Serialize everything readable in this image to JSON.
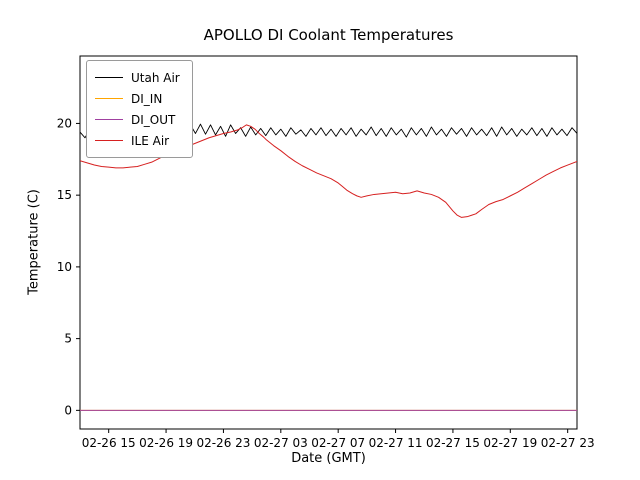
{
  "chart_data": {
    "type": "line",
    "title": "APOLLO DI Coolant Temperatures",
    "xlabel": "Date (GMT)",
    "ylabel": "Temperature (C)",
    "xlim": [
      0,
      34.65
    ],
    "ylim": [
      -1.3,
      24.7
    ],
    "grid": false,
    "legend_position": "upper left",
    "x_ticks": [
      {
        "t": 2,
        "label": "02-26 15"
      },
      {
        "t": 6,
        "label": "02-26 19"
      },
      {
        "t": 10,
        "label": "02-26 23"
      },
      {
        "t": 14,
        "label": "02-27 03"
      },
      {
        "t": 18,
        "label": "02-27 07"
      },
      {
        "t": 22,
        "label": "02-27 11"
      },
      {
        "t": 26,
        "label": "02-27 15"
      },
      {
        "t": 30,
        "label": "02-27 19"
      },
      {
        "t": 34,
        "label": "02-27 23"
      }
    ],
    "y_ticks": [
      0,
      5,
      10,
      15,
      20
    ],
    "series": [
      {
        "name": "Utah Air",
        "color": "#000000",
        "width": 0.9,
        "t0": 0,
        "dt": 0.35,
        "values": [
          19.4,
          19.0,
          19.6,
          19.1,
          19.7,
          19.2,
          19.6,
          19.05,
          19.65,
          19.2,
          19.7,
          19.1,
          19.75,
          19.25,
          19.6,
          19.1,
          19.7,
          19.2,
          19.8,
          19.15,
          19.85,
          19.2,
          19.9,
          19.3,
          19.95,
          19.25,
          19.9,
          19.2,
          19.8,
          19.1,
          19.9,
          19.3,
          19.7,
          19.1,
          19.75,
          19.2,
          19.65,
          19.15,
          19.7,
          19.2,
          19.6,
          19.1,
          19.7,
          19.25,
          19.55,
          19.1,
          19.65,
          19.2,
          19.7,
          19.15,
          19.6,
          19.1,
          19.65,
          19.2,
          19.7,
          19.1,
          19.6,
          19.2,
          19.75,
          19.15,
          19.65,
          19.1,
          19.7,
          19.2,
          19.6,
          19.05,
          19.7,
          19.2,
          19.65,
          19.1,
          19.75,
          19.2,
          19.6,
          19.1,
          19.7,
          19.25,
          19.65,
          19.1,
          19.7,
          19.2,
          19.6,
          19.15,
          19.7,
          19.1,
          19.75,
          19.2,
          19.65,
          19.1,
          19.6,
          19.2,
          19.7,
          19.15,
          19.65,
          19.1,
          19.7,
          19.2,
          19.6,
          19.15,
          19.7,
          19.3
        ]
      },
      {
        "name": "DI_IN",
        "color": "#ffa500",
        "width": 1,
        "points": [
          [
            0,
            0.0
          ],
          [
            34.65,
            0.0
          ]
        ]
      },
      {
        "name": "DI_OUT",
        "color": "#a040a0",
        "width": 1,
        "points": [
          [
            0,
            0.0
          ],
          [
            34.65,
            0.0
          ]
        ]
      },
      {
        "name": "ILE Air",
        "color": "#d62020",
        "width": 1,
        "points": [
          [
            0,
            17.4
          ],
          [
            0.5,
            17.25
          ],
          [
            1,
            17.1
          ],
          [
            1.5,
            17.0
          ],
          [
            2,
            16.95
          ],
          [
            2.5,
            16.9
          ],
          [
            3,
            16.9
          ],
          [
            3.5,
            16.95
          ],
          [
            4,
            17.0
          ],
          [
            4.5,
            17.15
          ],
          [
            5,
            17.3
          ],
          [
            5.5,
            17.55
          ],
          [
            6,
            17.8
          ],
          [
            6.5,
            18.0
          ],
          [
            7,
            18.2
          ],
          [
            7.5,
            18.4
          ],
          [
            8,
            18.6
          ],
          [
            8.5,
            18.8
          ],
          [
            9,
            19.0
          ],
          [
            9.5,
            19.15
          ],
          [
            10,
            19.3
          ],
          [
            10.5,
            19.4
          ],
          [
            11,
            19.55
          ],
          [
            11.3,
            19.7
          ],
          [
            11.6,
            19.9
          ],
          [
            11.9,
            19.8
          ],
          [
            12.2,
            19.6
          ],
          [
            12.5,
            19.3
          ],
          [
            12.8,
            19.05
          ],
          [
            13,
            18.85
          ],
          [
            13.5,
            18.45
          ],
          [
            14,
            18.1
          ],
          [
            14.5,
            17.7
          ],
          [
            15,
            17.35
          ],
          [
            15.5,
            17.05
          ],
          [
            16,
            16.8
          ],
          [
            16.5,
            16.55
          ],
          [
            17,
            16.35
          ],
          [
            17.5,
            16.15
          ],
          [
            18,
            15.85
          ],
          [
            18.3,
            15.6
          ],
          [
            18.6,
            15.35
          ],
          [
            19,
            15.1
          ],
          [
            19.3,
            14.95
          ],
          [
            19.6,
            14.85
          ],
          [
            20,
            14.95
          ],
          [
            20.5,
            15.05
          ],
          [
            21,
            15.1
          ],
          [
            21.5,
            15.15
          ],
          [
            22,
            15.2
          ],
          [
            22.5,
            15.1
          ],
          [
            23,
            15.15
          ],
          [
            23.5,
            15.3
          ],
          [
            24,
            15.15
          ],
          [
            24.5,
            15.05
          ],
          [
            25,
            14.85
          ],
          [
            25.5,
            14.5
          ],
          [
            26,
            13.9
          ],
          [
            26.3,
            13.6
          ],
          [
            26.6,
            13.45
          ],
          [
            27,
            13.5
          ],
          [
            27.3,
            13.6
          ],
          [
            27.6,
            13.7
          ],
          [
            28,
            14.0
          ],
          [
            28.5,
            14.35
          ],
          [
            29,
            14.55
          ],
          [
            29.5,
            14.7
          ],
          [
            30,
            14.95
          ],
          [
            30.5,
            15.2
          ],
          [
            31,
            15.5
          ],
          [
            31.5,
            15.8
          ],
          [
            32,
            16.1
          ],
          [
            32.5,
            16.4
          ],
          [
            33,
            16.65
          ],
          [
            33.5,
            16.9
          ],
          [
            34,
            17.1
          ],
          [
            34.65,
            17.35
          ]
        ]
      }
    ]
  }
}
